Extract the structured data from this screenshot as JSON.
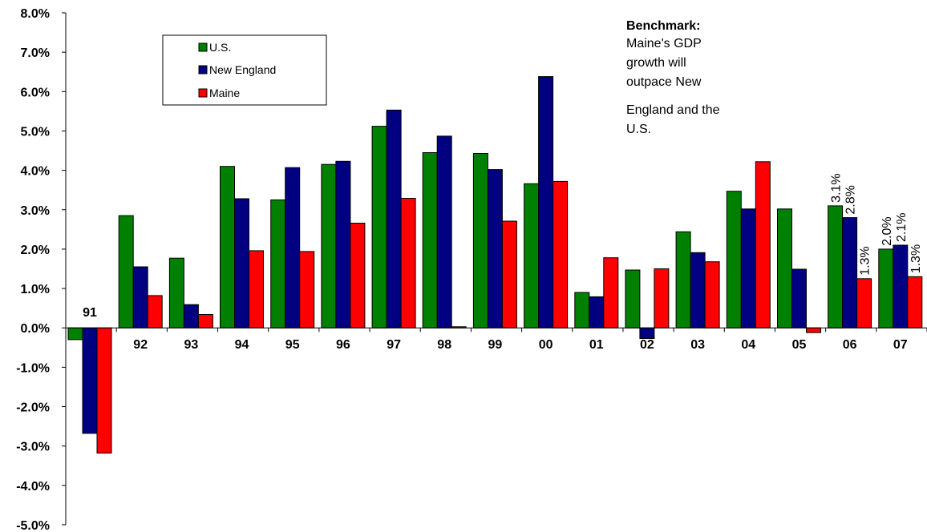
{
  "chart_data": {
    "type": "bar",
    "categories": [
      "91",
      "92",
      "93",
      "94",
      "95",
      "96",
      "97",
      "98",
      "99",
      "00",
      "01",
      "02",
      "03",
      "04",
      "05",
      "06",
      "07"
    ],
    "series": [
      {
        "name": "U.S.",
        "color": "#008000",
        "values": [
          -0.3,
          2.85,
          1.77,
          4.1,
          3.25,
          4.15,
          5.12,
          4.45,
          4.43,
          3.66,
          0.9,
          1.47,
          2.44,
          3.47,
          3.02,
          3.1,
          2.0
        ]
      },
      {
        "name": "New England",
        "color": "#000080",
        "values": [
          -2.68,
          1.55,
          0.59,
          3.28,
          4.07,
          4.23,
          5.53,
          4.87,
          4.02,
          6.38,
          0.79,
          -0.27,
          1.91,
          3.02,
          1.49,
          2.8,
          2.1
        ]
      },
      {
        "name": "Maine",
        "color": "#ff0000",
        "values": [
          -3.18,
          0.82,
          0.34,
          1.96,
          1.94,
          2.66,
          3.29,
          0.03,
          2.71,
          3.72,
          1.78,
          1.5,
          1.68,
          4.22,
          -0.12,
          1.25,
          1.3
        ]
      }
    ],
    "ylim": [
      -5.0,
      8.0
    ],
    "yticks": [
      "8.0%",
      "7.0%",
      "6.0%",
      "5.0%",
      "4.0%",
      "3.0%",
      "2.0%",
      "1.0%",
      "0.0%",
      "-1.0%",
      "-2.0%",
      "-3.0%",
      "-4.0%",
      "-5.0%"
    ],
    "ytick_values": [
      8,
      7,
      6,
      5,
      4,
      3,
      2,
      1,
      0,
      -1,
      -2,
      -3,
      -4,
      -5
    ],
    "grid": false,
    "legend_position": "top-left",
    "data_labels": [
      {
        "category": "06",
        "series": 0,
        "text": "3.1%"
      },
      {
        "category": "06",
        "series": 1,
        "text": "2.8%"
      },
      {
        "category": "06",
        "series": 2,
        "text": "1.3%"
      },
      {
        "category": "07",
        "series": 0,
        "text": "2.0%"
      },
      {
        "category": "07",
        "series": 1,
        "text": "2.1%"
      },
      {
        "category": "07",
        "series": 2,
        "text": "1.3%"
      }
    ],
    "annotation": {
      "title": "Benchmark:",
      "lines": [
        "Maine's GDP",
        "growth will",
        "outpace New",
        "England and the",
        "U.S."
      ]
    }
  }
}
